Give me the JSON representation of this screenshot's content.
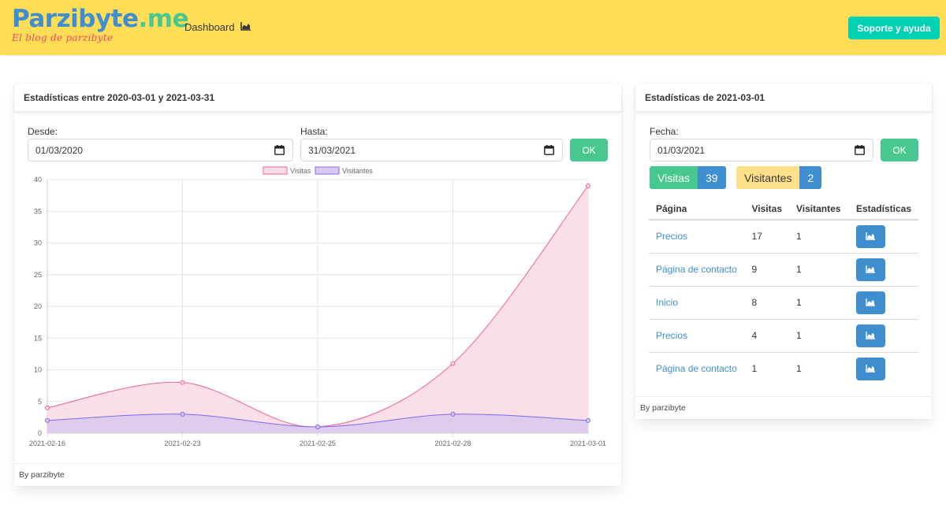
{
  "navbar": {
    "brand_part1": "Parzibyte",
    "brand_part2": ".me",
    "brand_subtitle": "El blog de parzibyte",
    "dashboard_label": "Dashboard",
    "support_label": "Soporte y ayuda"
  },
  "range_card": {
    "title": "Estadísticas entre 2020-03-01 y 2021-03-31",
    "from_label": "Desde:",
    "from_value": "01/03/2020",
    "to_label": "Hasta:",
    "to_value": "31/03/2021",
    "ok_label": "OK",
    "footer": "By parzibyte"
  },
  "day_card": {
    "title": "Estadísticas de 2021-03-01",
    "date_label": "Fecha:",
    "date_value": "01/03/2021",
    "ok_label": "OK",
    "visits_label": "Visitas",
    "visits_count": "39",
    "visitors_label": "Visitantes",
    "visitors_count": "2",
    "table": {
      "headers": [
        "Página",
        "Visitas",
        "Visitantes",
        "Estadísticas"
      ],
      "rows": [
        {
          "page": "Precios",
          "visits": "17",
          "visitors": "1"
        },
        {
          "page": "Página de contacto",
          "visits": "9",
          "visitors": "1"
        },
        {
          "page": "Inicio",
          "visits": "8",
          "visitors": "1"
        },
        {
          "page": "Precios",
          "visits": "4",
          "visitors": "1"
        },
        {
          "page": "Página de contacto",
          "visits": "1",
          "visitors": "1"
        }
      ]
    },
    "footer": "By parzibyte"
  },
  "colors": {
    "navbar": "#ffdd57",
    "primary": "#00d1b2",
    "success": "#48c78e",
    "info": "#3e8ed0",
    "warning": "#ffe08a",
    "visitas_line": "#f0648c",
    "visitas_fill": "#fadbe6",
    "visitantes_line": "#7b6cf0",
    "visitantes_fill": "#d8c8ee"
  },
  "chart_data": {
    "type": "area",
    "x": [
      "2021-02-16",
      "2021-02-23",
      "2021-02-25",
      "2021-02-28",
      "2021-03-01"
    ],
    "series": [
      {
        "name": "Visitas",
        "values": [
          4,
          8,
          1,
          11,
          39
        ]
      },
      {
        "name": "Visitantes",
        "values": [
          2,
          3,
          1,
          3,
          2
        ]
      }
    ],
    "ylim": [
      0,
      40
    ],
    "yticks": [
      0,
      5,
      10,
      15,
      20,
      25,
      30,
      35,
      40
    ],
    "grid": true,
    "legend_position": "top"
  }
}
